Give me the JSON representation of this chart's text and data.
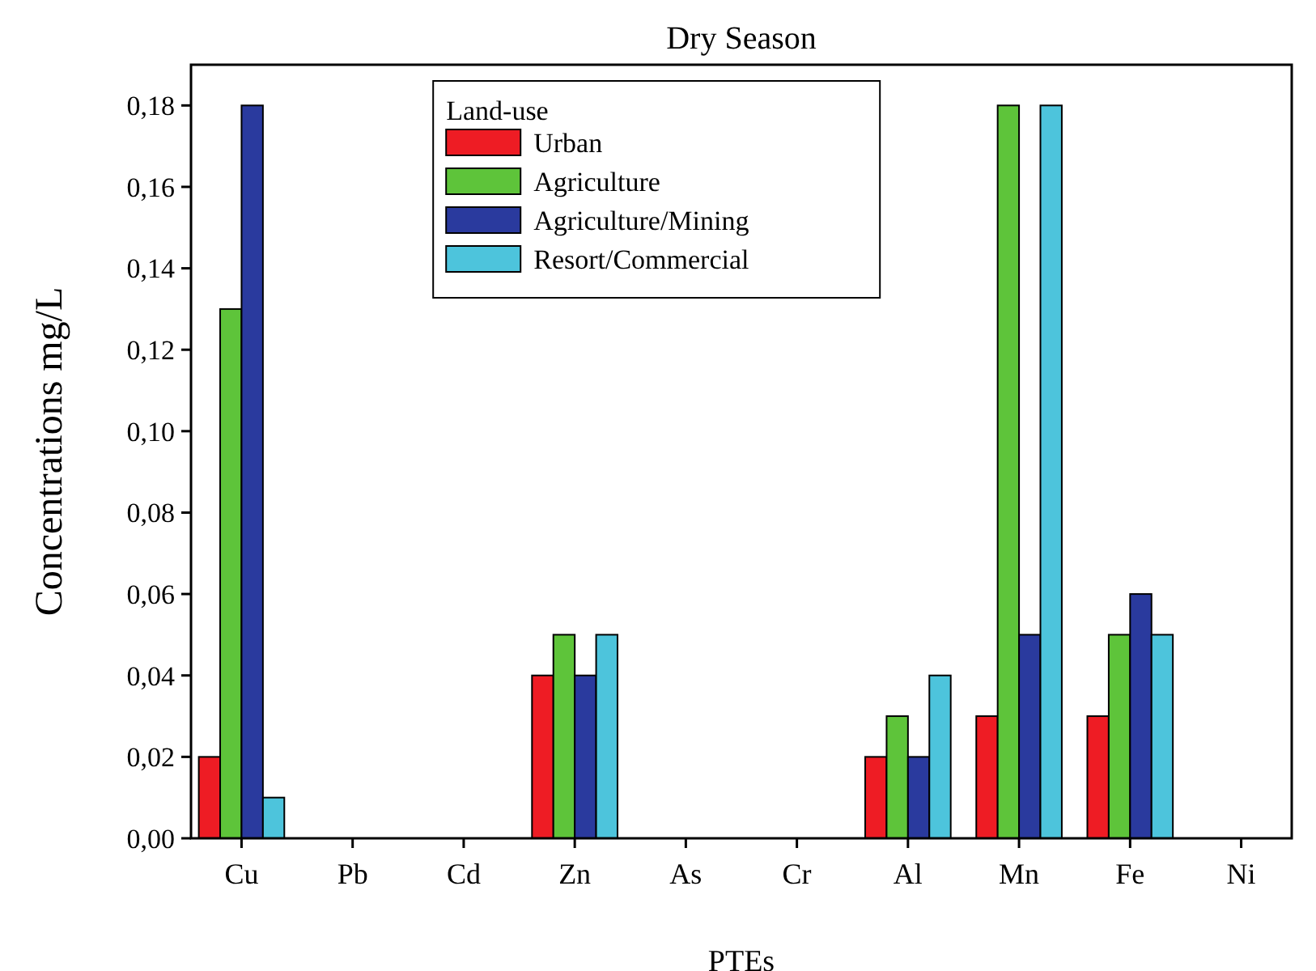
{
  "chart_data": {
    "type": "bar",
    "title": "Dry Season",
    "xlabel": "PTEs",
    "ylabel": "Concentrations mg/L",
    "legend_title": "Land-use",
    "legend": "top",
    "categories": [
      "Cu",
      "Pb",
      "Cd",
      "Zn",
      "As",
      "Cr",
      "Al",
      "Mn",
      "Fe",
      "Ni"
    ],
    "series": [
      {
        "name": "Urban",
        "color": "#ee1c24",
        "values": [
          0.02,
          0,
          0,
          0.04,
          0,
          0,
          0.02,
          0.03,
          0.03,
          0
        ]
      },
      {
        "name": "Agriculture",
        "color": "#5ec43a",
        "values": [
          0.13,
          0,
          0,
          0.05,
          0,
          0,
          0.03,
          0.18,
          0.05,
          0
        ]
      },
      {
        "name": "Agriculture/Mining",
        "color": "#2a3a9e",
        "values": [
          0.18,
          0,
          0,
          0.04,
          0,
          0,
          0.02,
          0.05,
          0.06,
          0
        ]
      },
      {
        "name": "Resort/Commercial",
        "color": "#4dc4dc",
        "values": [
          0.01,
          0,
          0,
          0.05,
          0,
          0,
          0.04,
          0.18,
          0.05,
          0
        ]
      }
    ],
    "ylim": [
      0,
      0.19
    ],
    "yticks": [
      {
        "value": 0,
        "label": "0,00"
      },
      {
        "value": 0.02,
        "label": "0,02"
      },
      {
        "value": 0.04,
        "label": "0,04"
      },
      {
        "value": 0.06,
        "label": "0,06"
      },
      {
        "value": 0.08,
        "label": "0,08"
      },
      {
        "value": 0.1,
        "label": "0,10"
      },
      {
        "value": 0.12,
        "label": "0,12"
      },
      {
        "value": 0.14,
        "label": "0,14"
      },
      {
        "value": 0.16,
        "label": "0,16"
      },
      {
        "value": 0.18,
        "label": "0,18"
      }
    ],
    "grid": false
  }
}
